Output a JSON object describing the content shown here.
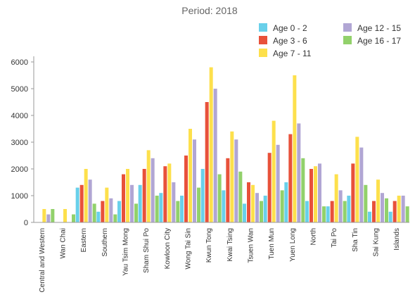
{
  "chart_data": {
    "type": "bar",
    "title": "Period: 2018",
    "xlabel": "",
    "ylabel": "",
    "ylim": [
      0,
      6000
    ],
    "yticks": [
      0,
      1000,
      2000,
      3000,
      4000,
      5000,
      6000
    ],
    "categories": [
      "Central and Western",
      "Wan Chai",
      "Eastern",
      "Southern",
      "Yau Tsim Mong",
      "Sham Shui Po",
      "Kowloon City",
      "Wong Tai Sin",
      "Kwun Tong",
      "Kwai Tsing",
      "Tsuen Wan",
      "Tuen Mun",
      "Yuen Long",
      "North",
      "Tai Po",
      "Sha Tin",
      "Sai Kung",
      "Islands"
    ],
    "series": [
      {
        "name": "Age 0 - 2",
        "color": "#69d0ea",
        "values": [
          0,
          0,
          1300,
          400,
          800,
          1400,
          1100,
          1000,
          2000,
          1200,
          700,
          1000,
          1500,
          800,
          600,
          1000,
          400,
          400
        ]
      },
      {
        "name": "Age 3 - 6",
        "color": "#e8513a",
        "values": [
          0,
          0,
          1400,
          800,
          1800,
          2000,
          2100,
          2500,
          4500,
          2400,
          1500,
          2600,
          3300,
          2000,
          800,
          2200,
          800,
          800
        ]
      },
      {
        "name": "Age 7 - 11",
        "color": "#fde04c",
        "values": [
          500,
          500,
          2000,
          1300,
          2000,
          2700,
          2200,
          3500,
          5800,
          3400,
          1400,
          3800,
          5500,
          2100,
          1800,
          3200,
          1600,
          1000
        ]
      },
      {
        "name": "Age 12 - 15",
        "color": "#b1a6d4",
        "values": [
          300,
          0,
          1600,
          900,
          1400,
          2400,
          1500,
          3100,
          5000,
          3100,
          1100,
          2900,
          3700,
          2200,
          1200,
          2800,
          1100,
          1000
        ]
      },
      {
        "name": "Age 16 - 17",
        "color": "#92d16b",
        "values": [
          500,
          300,
          700,
          300,
          700,
          1000,
          800,
          1300,
          1800,
          1900,
          800,
          1200,
          2400,
          600,
          800,
          1400,
          900,
          600
        ]
      }
    ],
    "legend": {
      "position": "top-right"
    },
    "grid": false
  }
}
